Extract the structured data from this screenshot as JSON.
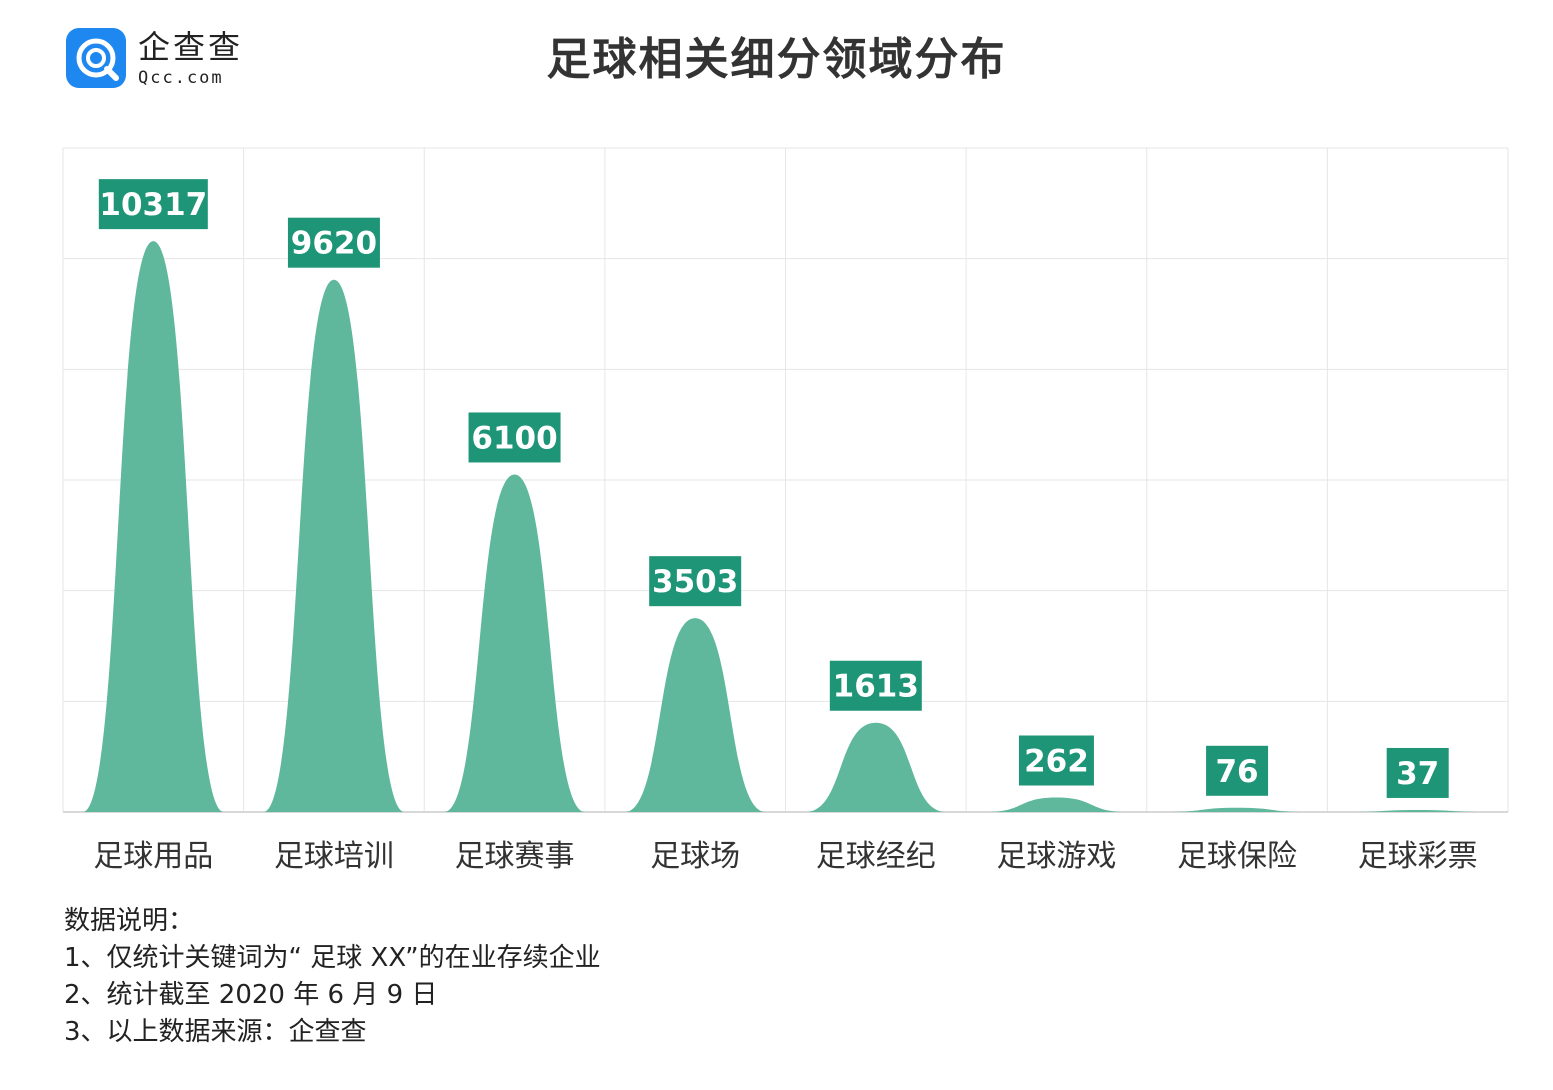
{
  "brand": {
    "name": "企查查",
    "domain": "Qcc.com",
    "icon": "qcc-magnifier-logo-icon",
    "color": "#1e88f0"
  },
  "chart_data": {
    "type": "area",
    "shape": "bell-peaks",
    "title": "足球相关细分领域分布",
    "categories": [
      "足球用品",
      "足球培训",
      "足球赛事",
      "足球场",
      "足球经纪",
      "足球游戏",
      "足球保险",
      "足球彩票"
    ],
    "values": [
      10317,
      9620,
      6100,
      3503,
      1613,
      262,
      76,
      37
    ],
    "ylim": [
      0,
      12000
    ],
    "grid": true,
    "legend": "none",
    "colors": {
      "fill": "#5fb79c",
      "label_bg": "#1e9577",
      "label_text": "#ffffff",
      "grid": "#e6e6e6"
    }
  },
  "notes": {
    "heading": "数据说明：",
    "items": [
      "1、仅统计关键词为“ 足球 XX”的在业存续企业",
      "2、统计截至 2020 年 6 月 9 日",
      "3、以上数据来源：企查查"
    ]
  }
}
